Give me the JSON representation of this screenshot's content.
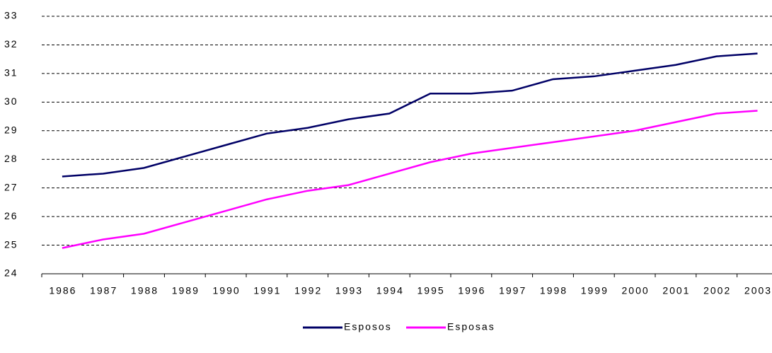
{
  "chart_data": {
    "type": "line",
    "categories": [
      "1986",
      "1987",
      "1988",
      "1989",
      "1990",
      "1991",
      "1992",
      "1993",
      "1994",
      "1995",
      "1996",
      "1997",
      "1998",
      "1999",
      "2000",
      "2001",
      "2002",
      "2003"
    ],
    "series": [
      {
        "name": "Esposos",
        "color": "#000066",
        "values": [
          27.4,
          27.5,
          27.7,
          28.1,
          28.5,
          28.9,
          29.1,
          29.4,
          29.6,
          30.3,
          30.3,
          30.4,
          30.8,
          30.9,
          31.1,
          31.3,
          31.6,
          31.7
        ]
      },
      {
        "name": "Esposas",
        "color": "#ff00ff",
        "values": [
          24.9,
          25.2,
          25.4,
          25.8,
          26.2,
          26.6,
          26.9,
          27.1,
          27.5,
          27.9,
          28.2,
          28.4,
          28.6,
          28.8,
          29.0,
          29.3,
          29.6,
          29.7
        ]
      }
    ],
    "ylim": [
      24,
      33
    ],
    "yticks": [
      24,
      25,
      26,
      27,
      28,
      29,
      30,
      31,
      32,
      33
    ],
    "grid": true,
    "legend": "bottom"
  }
}
